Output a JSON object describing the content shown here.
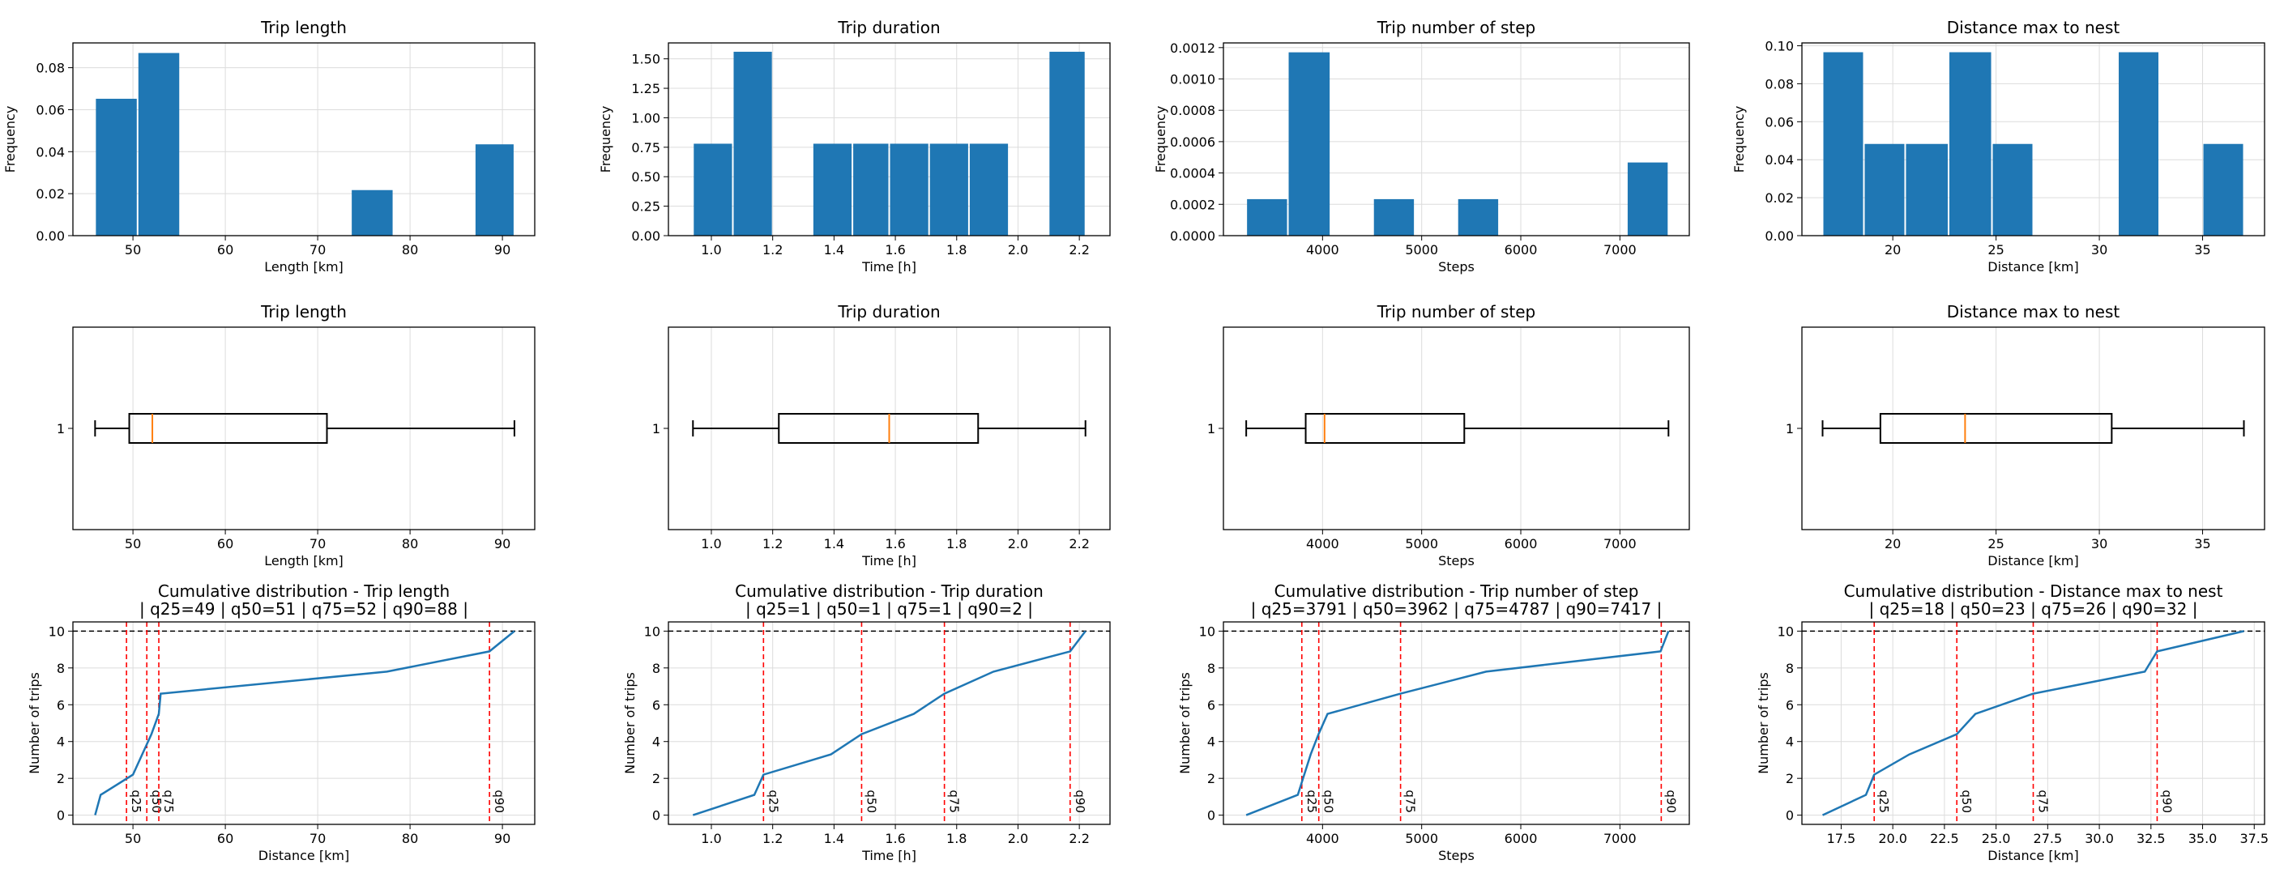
{
  "figure": {
    "background": "#ffffff",
    "bar_color": "#1f77b4",
    "line_color": "#1f77b4",
    "median_color": "#ff7f0e",
    "quantile_color": "#ff0000"
  },
  "chart_data": [
    {
      "id": "hist-length",
      "type": "bar",
      "kind": "histogram",
      "title": "Trip length",
      "xlabel": "Length [km]",
      "ylabel": "Frequency",
      "xlim": [
        43.5,
        93.5
      ],
      "ylim": [
        0,
        0.0918
      ],
      "xticks": [
        50,
        60,
        70,
        80,
        90
      ],
      "xticklabels": [
        "50",
        "60",
        "70",
        "80",
        "90"
      ],
      "yticks": [
        0,
        0.02,
        0.04,
        0.06,
        0.08
      ],
      "yticklabels": [
        "0.00",
        "0.02",
        "0.04",
        "0.06",
        "0.08"
      ],
      "bins": [
        {
          "x0": 45.9,
          "x1": 50.5,
          "value": 0.0652
        },
        {
          "x0": 50.5,
          "x1": 55.1,
          "value": 0.087
        },
        {
          "x0": 73.6,
          "x1": 78.2,
          "value": 0.0217
        },
        {
          "x0": 87.0,
          "x1": 91.3,
          "value": 0.0435
        }
      ],
      "grid": true
    },
    {
      "id": "hist-duration",
      "type": "bar",
      "kind": "histogram",
      "title": "Trip duration",
      "xlabel": "Time [h]",
      "ylabel": "Frequency",
      "xlim": [
        0.86,
        2.3
      ],
      "ylim": [
        0,
        1.635
      ],
      "xticks": [
        1.0,
        1.2,
        1.4,
        1.6,
        1.8,
        2.0,
        2.2
      ],
      "xticklabels": [
        "1.0",
        "1.2",
        "1.4",
        "1.6",
        "1.8",
        "2.0",
        "2.2"
      ],
      "yticks": [
        0,
        0.25,
        0.5,
        0.75,
        1.0,
        1.25,
        1.5
      ],
      "yticklabels": [
        "0.00",
        "0.25",
        "0.50",
        "0.75",
        "1.00",
        "1.25",
        "1.50"
      ],
      "bins": [
        {
          "x0": 0.94,
          "x1": 1.07,
          "value": 0.78
        },
        {
          "x0": 1.07,
          "x1": 1.2,
          "value": 1.56
        },
        {
          "x0": 1.33,
          "x1": 1.46,
          "value": 0.78
        },
        {
          "x0": 1.46,
          "x1": 1.58,
          "value": 0.78
        },
        {
          "x0": 1.58,
          "x1": 1.71,
          "value": 0.78
        },
        {
          "x0": 1.71,
          "x1": 1.84,
          "value": 0.78
        },
        {
          "x0": 1.84,
          "x1": 1.97,
          "value": 0.78
        },
        {
          "x0": 2.1,
          "x1": 2.22,
          "value": 1.56
        }
      ],
      "grid": true
    },
    {
      "id": "hist-steps",
      "type": "bar",
      "kind": "histogram",
      "title": "Trip number of step",
      "xlabel": "Steps",
      "ylabel": "Frequency",
      "xlim": [
        3000,
        7700
      ],
      "ylim": [
        0,
        0.00123
      ],
      "xticks": [
        4000,
        5000,
        6000,
        7000
      ],
      "xticklabels": [
        "4000",
        "5000",
        "6000",
        "7000"
      ],
      "yticks": [
        0,
        0.0002,
        0.0004,
        0.0006,
        0.0008,
        0.001,
        0.0012
      ],
      "yticklabels": [
        "0.0000",
        "0.0002",
        "0.0004",
        "0.0006",
        "0.0008",
        "0.0010",
        "0.0012"
      ],
      "bins": [
        {
          "x0": 3230,
          "x1": 3650,
          "value": 0.000233
        },
        {
          "x0": 3650,
          "x1": 4080,
          "value": 0.00117
        },
        {
          "x0": 4510,
          "x1": 4930,
          "value": 0.000233
        },
        {
          "x0": 5360,
          "x1": 5780,
          "value": 0.000233
        },
        {
          "x0": 7070,
          "x1": 7490,
          "value": 0.000467
        }
      ],
      "grid": true
    },
    {
      "id": "hist-distmax",
      "type": "bar",
      "kind": "histogram",
      "title": "Distance max to nest",
      "xlabel": "Distance [km]",
      "ylabel": "Frequency",
      "xlim": [
        15.6,
        38.0
      ],
      "ylim": [
        0,
        0.1015
      ],
      "xticks": [
        20,
        25,
        30,
        35
      ],
      "xticklabels": [
        "20",
        "25",
        "30",
        "35"
      ],
      "yticks": [
        0,
        0.02,
        0.04,
        0.06,
        0.08,
        0.1
      ],
      "yticklabels": [
        "0.00",
        "0.02",
        "0.04",
        "0.06",
        "0.08",
        "0.10"
      ],
      "bins": [
        {
          "x0": 16.6,
          "x1": 18.6,
          "value": 0.0966
        },
        {
          "x0": 18.6,
          "x1": 20.6,
          "value": 0.0483
        },
        {
          "x0": 20.6,
          "x1": 22.7,
          "value": 0.0483
        },
        {
          "x0": 22.7,
          "x1": 24.8,
          "value": 0.0966
        },
        {
          "x0": 24.8,
          "x1": 26.8,
          "value": 0.0483
        },
        {
          "x0": 30.9,
          "x1": 32.9,
          "value": 0.0966
        },
        {
          "x0": 35.0,
          "x1": 37.0,
          "value": 0.0483
        }
      ],
      "grid": true
    },
    {
      "id": "box-length",
      "type": "box",
      "title": "Trip length",
      "xlabel": "Length [km]",
      "xlim": [
        43.5,
        93.5
      ],
      "xticks": [
        50,
        60,
        70,
        80,
        90
      ],
      "xticklabels": [
        "50",
        "60",
        "70",
        "80",
        "90"
      ],
      "ytick": "1",
      "box": {
        "min": 45.9,
        "q1": 49.6,
        "median": 52.1,
        "q3": 71.0,
        "max": 91.3
      },
      "grid": true
    },
    {
      "id": "box-duration",
      "type": "box",
      "title": "Trip duration",
      "xlabel": "Time [h]",
      "xlim": [
        0.86,
        2.3
      ],
      "xticks": [
        1.0,
        1.2,
        1.4,
        1.6,
        1.8,
        2.0,
        2.2
      ],
      "xticklabels": [
        "1.0",
        "1.2",
        "1.4",
        "1.6",
        "1.8",
        "2.0",
        "2.2"
      ],
      "ytick": "1",
      "box": {
        "min": 0.94,
        "q1": 1.22,
        "median": 1.58,
        "q3": 1.87,
        "max": 2.22
      },
      "grid": true
    },
    {
      "id": "box-steps",
      "type": "box",
      "title": "Trip number of step",
      "xlabel": "Steps",
      "xlim": [
        3000,
        7700
      ],
      "xticks": [
        4000,
        5000,
        6000,
        7000
      ],
      "xticklabels": [
        "4000",
        "5000",
        "6000",
        "7000"
      ],
      "ytick": "1",
      "box": {
        "min": 3230,
        "q1": 3830,
        "median": 4020,
        "q3": 5430,
        "max": 7490
      },
      "grid": true
    },
    {
      "id": "box-distmax",
      "type": "box",
      "title": "Distance max to nest",
      "xlabel": "Distance [km]",
      "xlim": [
        15.6,
        38.0
      ],
      "xticks": [
        20,
        25,
        30,
        35
      ],
      "xticklabels": [
        "20",
        "25",
        "30",
        "35"
      ],
      "ytick": "1",
      "box": {
        "min": 16.6,
        "q1": 19.4,
        "median": 23.5,
        "q3": 30.6,
        "max": 37.0
      },
      "grid": true
    },
    {
      "id": "cdf-length",
      "type": "line",
      "kind": "cumulative",
      "title": "Cumulative distribution - Trip length",
      "subtitle": "| q25=49 | q50=51 | q75=52 | q90=88 |",
      "xlabel": "Distance [km]",
      "ylabel": "Number of trips",
      "xlim": [
        43.5,
        93.5
      ],
      "ylim": [
        -0.5,
        10.5
      ],
      "xticks": [
        50,
        60,
        70,
        80,
        90
      ],
      "xticklabels": [
        "50",
        "60",
        "70",
        "80",
        "90"
      ],
      "yticks": [
        0,
        2,
        4,
        6,
        8,
        10
      ],
      "yticklabels": [
        "0",
        "2",
        "4",
        "6",
        "8",
        "10"
      ],
      "x": [
        45.9,
        46.5,
        50.0,
        51.0,
        52.0,
        52.8,
        53.0,
        77.5,
        88.6,
        91.3
      ],
      "y": [
        0,
        1.1,
        2.2,
        3.3,
        4.4,
        5.5,
        6.6,
        7.8,
        8.9,
        10
      ],
      "hline": 10,
      "quantiles": [
        {
          "label": "q25",
          "x": 49.3
        },
        {
          "label": "q50",
          "x": 51.5
        },
        {
          "label": "q75",
          "x": 52.8
        },
        {
          "label": "q90",
          "x": 88.6
        }
      ],
      "grid": true
    },
    {
      "id": "cdf-duration",
      "type": "line",
      "kind": "cumulative",
      "title": "Cumulative distribution - Trip duration",
      "subtitle": "| q25=1 | q50=1 | q75=1 | q90=2 |",
      "xlabel": "Time [h]",
      "ylabel": "Number of trips",
      "xlim": [
        0.86,
        2.3
      ],
      "ylim": [
        -0.5,
        10.5
      ],
      "xticks": [
        1.0,
        1.2,
        1.4,
        1.6,
        1.8,
        2.0,
        2.2
      ],
      "xticklabels": [
        "1.0",
        "1.2",
        "1.4",
        "1.6",
        "1.8",
        "2.0",
        "2.2"
      ],
      "yticks": [
        0,
        2,
        4,
        6,
        8,
        10
      ],
      "yticklabels": [
        "0",
        "2",
        "4",
        "6",
        "8",
        "10"
      ],
      "x": [
        0.94,
        1.14,
        1.17,
        1.39,
        1.49,
        1.66,
        1.76,
        1.92,
        2.17,
        2.22
      ],
      "y": [
        0,
        1.1,
        2.2,
        3.3,
        4.4,
        5.5,
        6.6,
        7.8,
        8.9,
        10
      ],
      "hline": 10,
      "quantiles": [
        {
          "label": "q25",
          "x": 1.17
        },
        {
          "label": "q50",
          "x": 1.49
        },
        {
          "label": "q75",
          "x": 1.76
        },
        {
          "label": "q90",
          "x": 2.17
        }
      ],
      "grid": true
    },
    {
      "id": "cdf-steps",
      "type": "line",
      "kind": "cumulative",
      "title": "Cumulative distribution - Trip number of step",
      "subtitle": "| q25=3791 | q50=3962 | q75=4787 | q90=7417 |",
      "xlabel": "Steps",
      "ylabel": "Number of trips",
      "xlim": [
        3000,
        7700
      ],
      "ylim": [
        -0.5,
        10.5
      ],
      "xticks": [
        4000,
        5000,
        6000,
        7000
      ],
      "xticklabels": [
        "4000",
        "5000",
        "6000",
        "7000"
      ],
      "yticks": [
        0,
        2,
        4,
        6,
        8,
        10
      ],
      "yticklabels": [
        "0",
        "2",
        "4",
        "6",
        "8",
        "10"
      ],
      "x": [
        3230,
        3750,
        3880,
        3960,
        4050,
        4787,
        5650,
        7410,
        7490
      ],
      "y": [
        0,
        1.1,
        3.3,
        4.4,
        5.5,
        6.6,
        7.8,
        8.9,
        10
      ],
      "hline": 10,
      "quantiles": [
        {
          "label": "q25",
          "x": 3791
        },
        {
          "label": "q50",
          "x": 3962
        },
        {
          "label": "q75",
          "x": 4787
        },
        {
          "label": "q90",
          "x": 7417
        }
      ],
      "grid": true
    },
    {
      "id": "cdf-distmax",
      "type": "line",
      "kind": "cumulative",
      "title": "Cumulative distribution - Distance max to nest",
      "subtitle": "| q25=18 | q50=23 | q75=26 | q90=32 |",
      "xlabel": "Distance [km]",
      "ylabel": "Number of trips",
      "xlim": [
        15.6,
        38.0
      ],
      "ylim": [
        -0.5,
        10.5
      ],
      "xticks": [
        17.5,
        20,
        22.5,
        25,
        27.5,
        30,
        32.5,
        35,
        37.5
      ],
      "xticklabels": [
        "17.5",
        "20.0",
        "22.5",
        "25.0",
        "27.5",
        "30.0",
        "32.5",
        "35.0",
        "37.5"
      ],
      "yticks": [
        0,
        2,
        4,
        6,
        8,
        10
      ],
      "yticklabels": [
        "0",
        "2",
        "4",
        "6",
        "8",
        "10"
      ],
      "x": [
        16.6,
        18.7,
        19.1,
        20.8,
        23.1,
        24.0,
        26.8,
        32.2,
        32.8,
        37.0
      ],
      "y": [
        0,
        1.1,
        2.2,
        3.3,
        4.4,
        5.5,
        6.6,
        7.8,
        8.9,
        10
      ],
      "hline": 10,
      "quantiles": [
        {
          "label": "q25",
          "x": 19.1
        },
        {
          "label": "q50",
          "x": 23.1
        },
        {
          "label": "q75",
          "x": 26.8
        },
        {
          "label": "q90",
          "x": 32.8
        }
      ],
      "grid": true
    }
  ]
}
